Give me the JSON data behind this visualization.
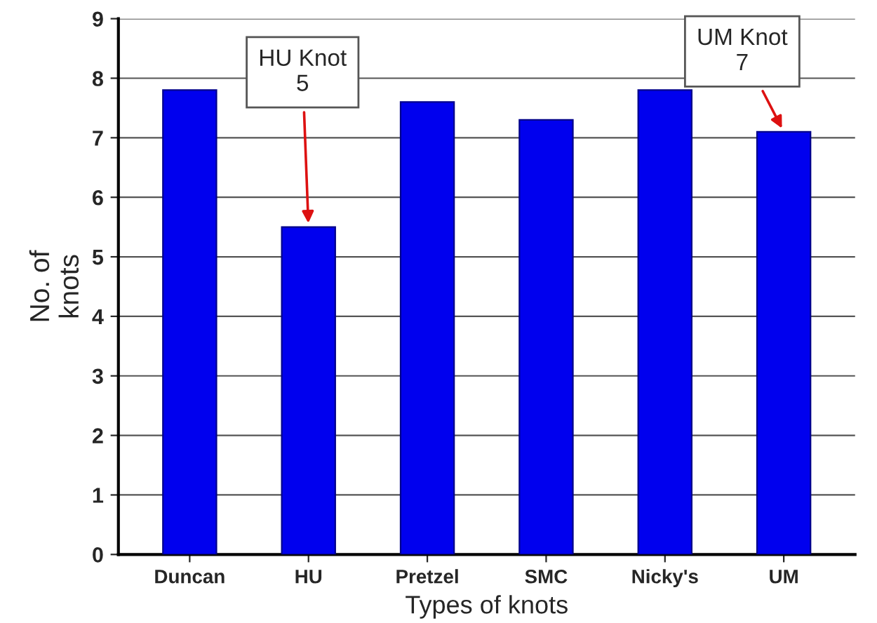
{
  "chart_data": {
    "type": "bar",
    "xlabel": "Types of knots",
    "ylabel": "No. of\nknots",
    "categories": [
      "Duncan",
      "HU",
      "Pretzel",
      "SMC",
      "Nicky's",
      "UM"
    ],
    "values": [
      7.8,
      5.5,
      7.6,
      7.3,
      7.8,
      7.1
    ],
    "color": "#0000ee",
    "ylim": [
      0,
      9
    ],
    "yticks": [
      0,
      1,
      2,
      3,
      4,
      5,
      6,
      7,
      8,
      9
    ],
    "grid": "y",
    "annotations": [
      {
        "text": "HU Knot\n5",
        "x": "HU",
        "y": 5.5
      },
      {
        "text": "UM Knot\n7",
        "x": "UM",
        "y": 7.1
      }
    ]
  }
}
